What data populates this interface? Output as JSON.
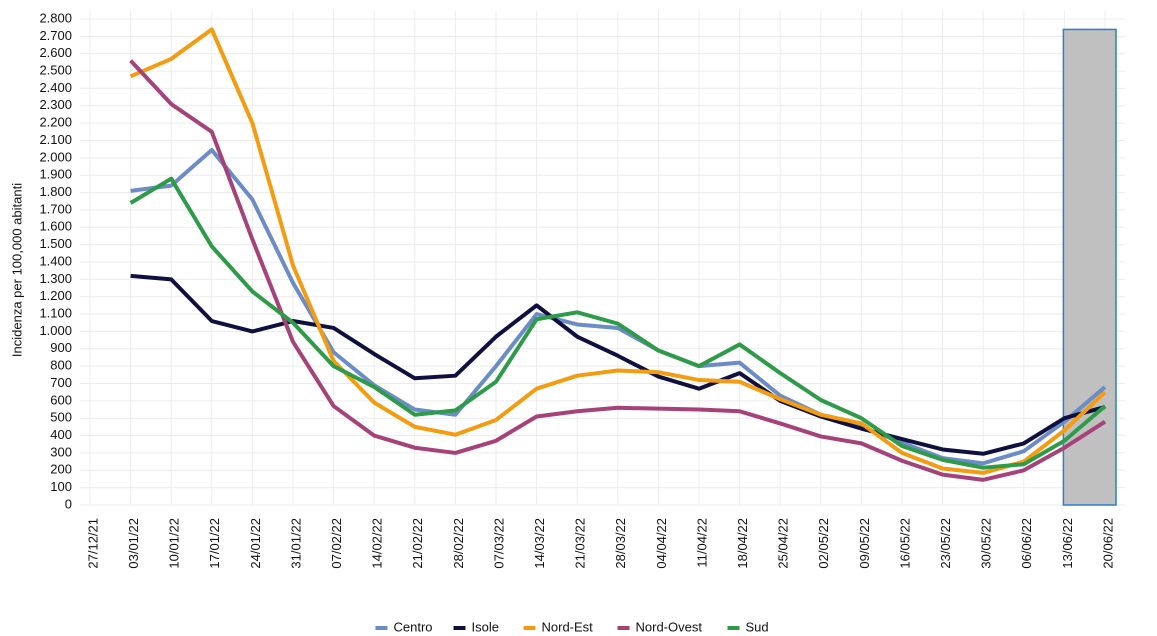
{
  "chart_data": {
    "type": "line",
    "y_label": "Incidenza per 100,000 abitanti",
    "categories": [
      "27/12/21",
      "03/01/22",
      "10/01/22",
      "17/01/22",
      "24/01/22",
      "31/01/22",
      "07/02/22",
      "14/02/22",
      "21/02/22",
      "28/02/22",
      "07/03/22",
      "14/03/22",
      "21/03/22",
      "28/03/22",
      "04/04/22",
      "11/04/22",
      "18/04/22",
      "25/04/22",
      "02/05/22",
      "09/05/22",
      "16/05/22",
      "23/05/22",
      "30/05/22",
      "06/06/22",
      "13/06/22",
      "20/06/22"
    ],
    "series": [
      {
        "name": "Centro",
        "color": "#6b8cc6",
        "values": [
          null,
          1810,
          1840,
          2045,
          1760,
          1280,
          880,
          690,
          550,
          520,
          800,
          1100,
          1040,
          1020,
          890,
          800,
          820,
          630,
          520,
          450,
          360,
          270,
          240,
          310,
          480,
          680
        ]
      },
      {
        "name": "Isole",
        "color": "#10103f",
        "values": [
          null,
          1320,
          1300,
          1060,
          1000,
          1060,
          1020,
          870,
          730,
          745,
          970,
          1150,
          970,
          860,
          740,
          670,
          760,
          600,
          510,
          440,
          380,
          320,
          295,
          355,
          500,
          565
        ]
      },
      {
        "name": "Nord-Est",
        "color": "#f39c12",
        "values": [
          null,
          2470,
          2570,
          2740,
          2200,
          1380,
          830,
          590,
          450,
          405,
          490,
          670,
          745,
          775,
          765,
          720,
          710,
          610,
          520,
          470,
          300,
          210,
          185,
          250,
          430,
          650
        ]
      },
      {
        "name": "Nord-Ovest",
        "color": "#a5427a",
        "values": [
          null,
          2560,
          2310,
          2150,
          1530,
          940,
          570,
          400,
          330,
          300,
          370,
          510,
          540,
          560,
          555,
          550,
          540,
          470,
          395,
          355,
          255,
          175,
          145,
          200,
          330,
          480
        ]
      },
      {
        "name": "Sud",
        "color": "#2e9b48",
        "values": [
          null,
          1740,
          1880,
          1490,
          1230,
          1050,
          800,
          680,
          520,
          545,
          710,
          1070,
          1110,
          1045,
          890,
          800,
          925,
          760,
          605,
          500,
          340,
          260,
          215,
          235,
          370,
          570
        ]
      }
    ],
    "ylim": [
      0,
      2800
    ],
    "yticks": [
      0,
      100,
      200,
      300,
      400,
      500,
      600,
      700,
      800,
      900,
      {
        "value": 1000,
        "label": "1.000"
      },
      {
        "value": 1100,
        "label": "1.100"
      },
      {
        "value": 1200,
        "label": "1.200"
      },
      {
        "value": 1300,
        "label": "1.300"
      },
      {
        "value": 1400,
        "label": "1.400"
      },
      {
        "value": 1500,
        "label": "1.500"
      },
      {
        "value": 1600,
        "label": "1.600"
      },
      {
        "value": 1700,
        "label": "1.700"
      },
      {
        "value": 1800,
        "label": "1.800"
      },
      {
        "value": 1900,
        "label": "1.900"
      },
      {
        "value": 2000,
        "label": "2.000"
      },
      {
        "value": 2100,
        "label": "2.100"
      },
      {
        "value": 2200,
        "label": "2.200"
      },
      {
        "value": 2300,
        "label": "2.300"
      },
      {
        "value": 2400,
        "label": "2.400"
      },
      {
        "value": 2500,
        "label": "2.500"
      },
      {
        "value": 2600,
        "label": "2.600"
      },
      {
        "value": 2700,
        "label": "2.700"
      },
      {
        "value": 2800,
        "label": "2.800"
      }
    ],
    "grid": true,
    "legend": "bottom"
  }
}
